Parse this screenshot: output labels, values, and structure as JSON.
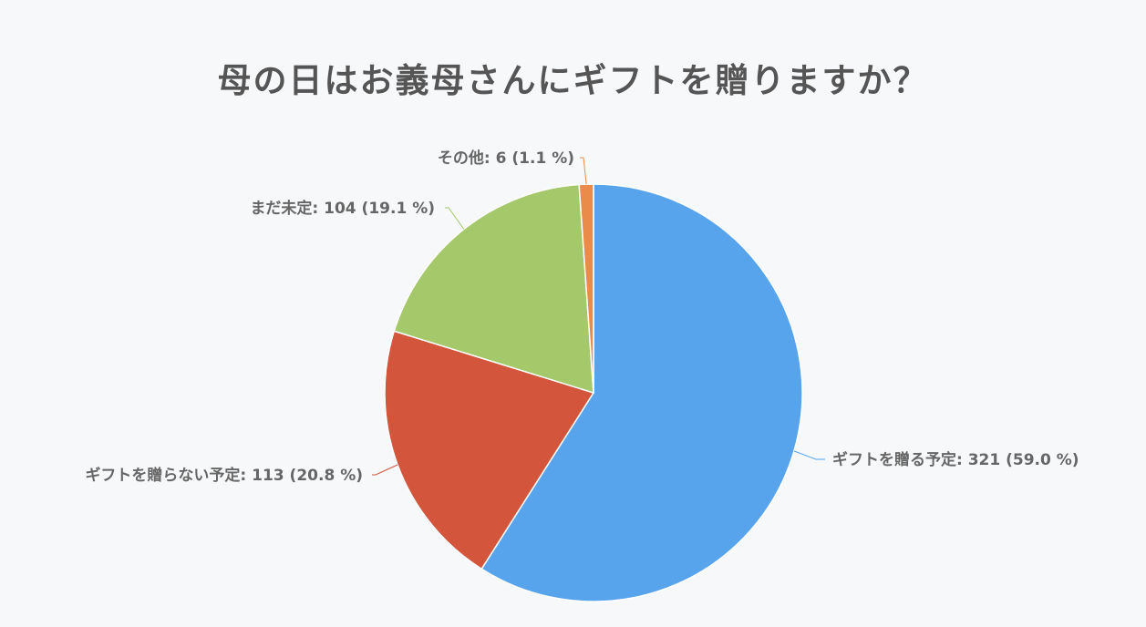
{
  "chart_data": {
    "type": "pie",
    "title": "母の日はお義母さんにギフトを贈りますか？",
    "slices": [
      {
        "label": "ギフトを贈る予定",
        "value": 321,
        "percent": "59.0 %",
        "color": "#57a3ec",
        "text": "ギフトを贈る予定: 321 (59.0 %)"
      },
      {
        "label": "ギフトを贈らない予定",
        "value": 113,
        "percent": "20.8 %",
        "color": "#d2553c",
        "text": "ギフトを贈らない予定: 113 (20.8 %)"
      },
      {
        "label": "まだ未定",
        "value": 104,
        "percent": "19.1 %",
        "color": "#a5c86a",
        "text": "まだ未定: 104 (19.1 %)"
      },
      {
        "label": "その他",
        "value": 6,
        "percent": "1.1 %",
        "color": "#ea8b4a",
        "text": "その他: 6 (1.1 %)"
      }
    ],
    "legend": "none",
    "data_labels": "outside"
  }
}
